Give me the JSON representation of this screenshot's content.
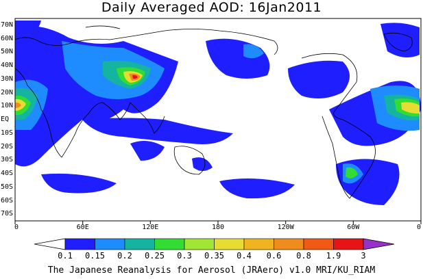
{
  "title": "Daily Averaged AOD: 16Jan2011",
  "map": {
    "lat_labels": [
      "70N",
      "60N",
      "50N",
      "40N",
      "30N",
      "20N",
      "10N",
      "EQ",
      "10S",
      "20S",
      "30S",
      "40S",
      "50S",
      "60S",
      "70S"
    ],
    "lon_labels": [
      "0",
      "60E",
      "120E",
      "180",
      "120W",
      "60W",
      "0"
    ]
  },
  "colorbar": {
    "colors": [
      "#ffffff",
      "#1e1eff",
      "#1e8cff",
      "#14b4a0",
      "#32dc32",
      "#a0e632",
      "#e6dc32",
      "#f0b41e",
      "#f08c1e",
      "#f05a14",
      "#e61414",
      "#9632c8"
    ],
    "labels": [
      "0.1",
      "0.15",
      "0.2",
      "0.25",
      "0.3",
      "0.35",
      "0.4",
      "0.6",
      "0.8",
      "1.9",
      "3"
    ]
  },
  "footer": "The Japanese Reanalysis for Aerosol (JRAero) v1.0 MRI/KU_RIAM"
}
